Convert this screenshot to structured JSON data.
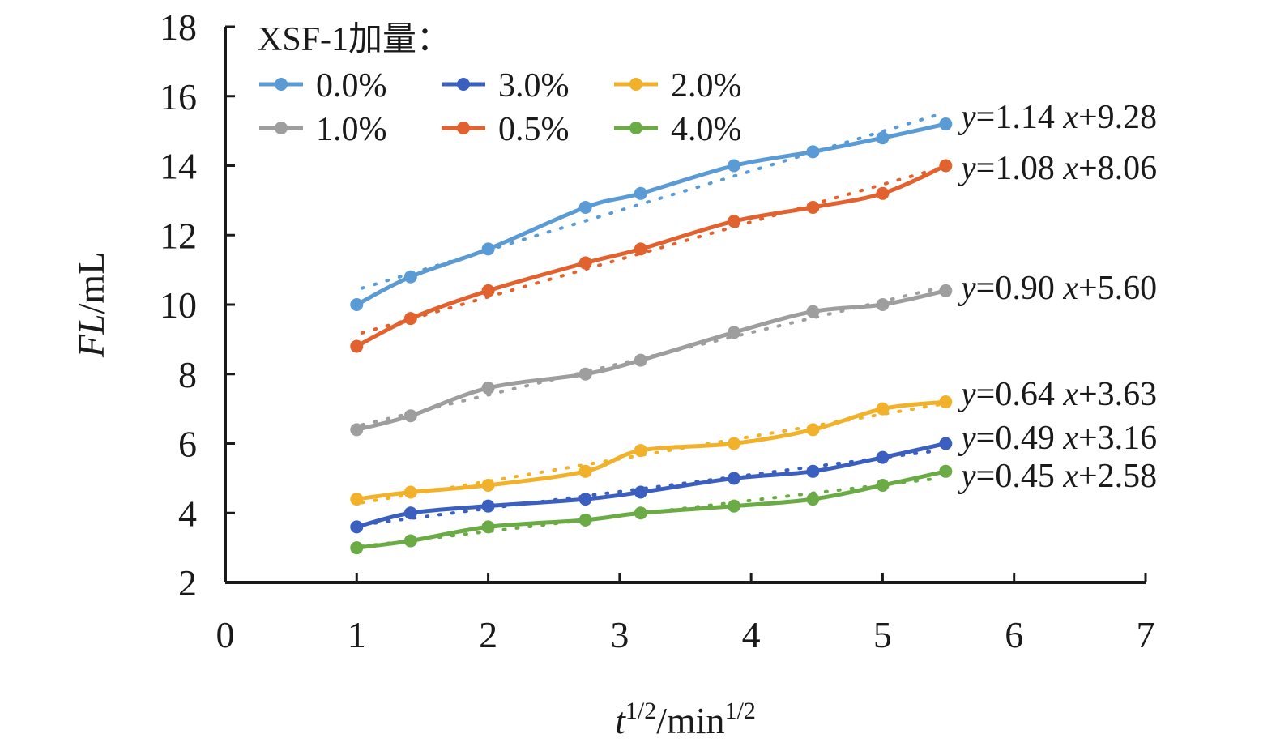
{
  "chart_data": {
    "type": "line",
    "xlabel": {
      "base": "t",
      "exp": "1/2",
      "unit": "/min",
      "unit_exp": "1/2"
    },
    "ylabel": {
      "italic": "FL",
      "unit": "/mL"
    },
    "xlim": [
      0,
      7
    ],
    "ylim": [
      2,
      18
    ],
    "xticks": [
      "0",
      "1",
      "2",
      "3",
      "4",
      "5",
      "6",
      "7"
    ],
    "yticks": [
      "2",
      "4",
      "6",
      "8",
      "10",
      "12",
      "14",
      "16",
      "18"
    ],
    "grid": false,
    "legend": {
      "title": "XSF-1加量：",
      "position": "top-left",
      "columns": 3
    },
    "x": [
      1.0,
      1.41,
      2.0,
      2.74,
      3.16,
      3.87,
      4.47,
      5.0,
      5.48
    ],
    "series": [
      {
        "name": "0.0%",
        "color": "#5b9bd5",
        "values": [
          10.0,
          10.8,
          11.6,
          12.8,
          13.2,
          14.0,
          14.4,
          14.8,
          15.2
        ],
        "fit": {
          "slope": 1.14,
          "intercept": 9.28,
          "label_y": "y",
          "label_rest": "=1.14 ",
          "label_x": "x",
          "label_tail": "+9.28"
        }
      },
      {
        "name": "0.5%",
        "color": "#e2622f",
        "values": [
          8.8,
          9.6,
          10.4,
          11.2,
          11.6,
          12.4,
          12.8,
          13.2,
          14.0
        ],
        "fit": {
          "slope": 1.08,
          "intercept": 8.06,
          "label_y": "y",
          "label_rest": "=1.08 ",
          "label_x": "x",
          "label_tail": "+8.06"
        }
      },
      {
        "name": "1.0%",
        "color": "#9e9e9e",
        "values": [
          6.4,
          6.8,
          7.6,
          8.0,
          8.4,
          9.2,
          9.8,
          10.0,
          10.4
        ],
        "fit": {
          "slope": 0.9,
          "intercept": 5.6,
          "label_y": "y",
          "label_rest": "=0.90 ",
          "label_x": "x",
          "label_tail": "+5.60"
        }
      },
      {
        "name": "2.0%",
        "color": "#f2b12a",
        "values": [
          4.4,
          4.6,
          4.8,
          5.2,
          5.8,
          6.0,
          6.4,
          7.0,
          7.2
        ],
        "fit": {
          "slope": 0.64,
          "intercept": 3.63,
          "label_y": "y",
          "label_rest": "=0.64 ",
          "label_x": "x",
          "label_tail": "+3.63"
        }
      },
      {
        "name": "3.0%",
        "color": "#3a5fbf",
        "values": [
          3.6,
          4.0,
          4.2,
          4.4,
          4.6,
          5.0,
          5.2,
          5.6,
          6.0
        ],
        "fit": {
          "slope": 0.49,
          "intercept": 3.16,
          "label_y": "y",
          "label_rest": "=0.49 ",
          "label_x": "x",
          "label_tail": "+3.16"
        }
      },
      {
        "name": "4.0%",
        "color": "#6aab45",
        "values": [
          3.0,
          3.2,
          3.6,
          3.8,
          4.0,
          4.2,
          4.4,
          4.8,
          5.2
        ],
        "fit": {
          "slope": 0.45,
          "intercept": 2.58,
          "label_y": "y",
          "label_rest": "=0.45 ",
          "label_x": "x",
          "label_tail": "+2.58"
        }
      }
    ]
  }
}
